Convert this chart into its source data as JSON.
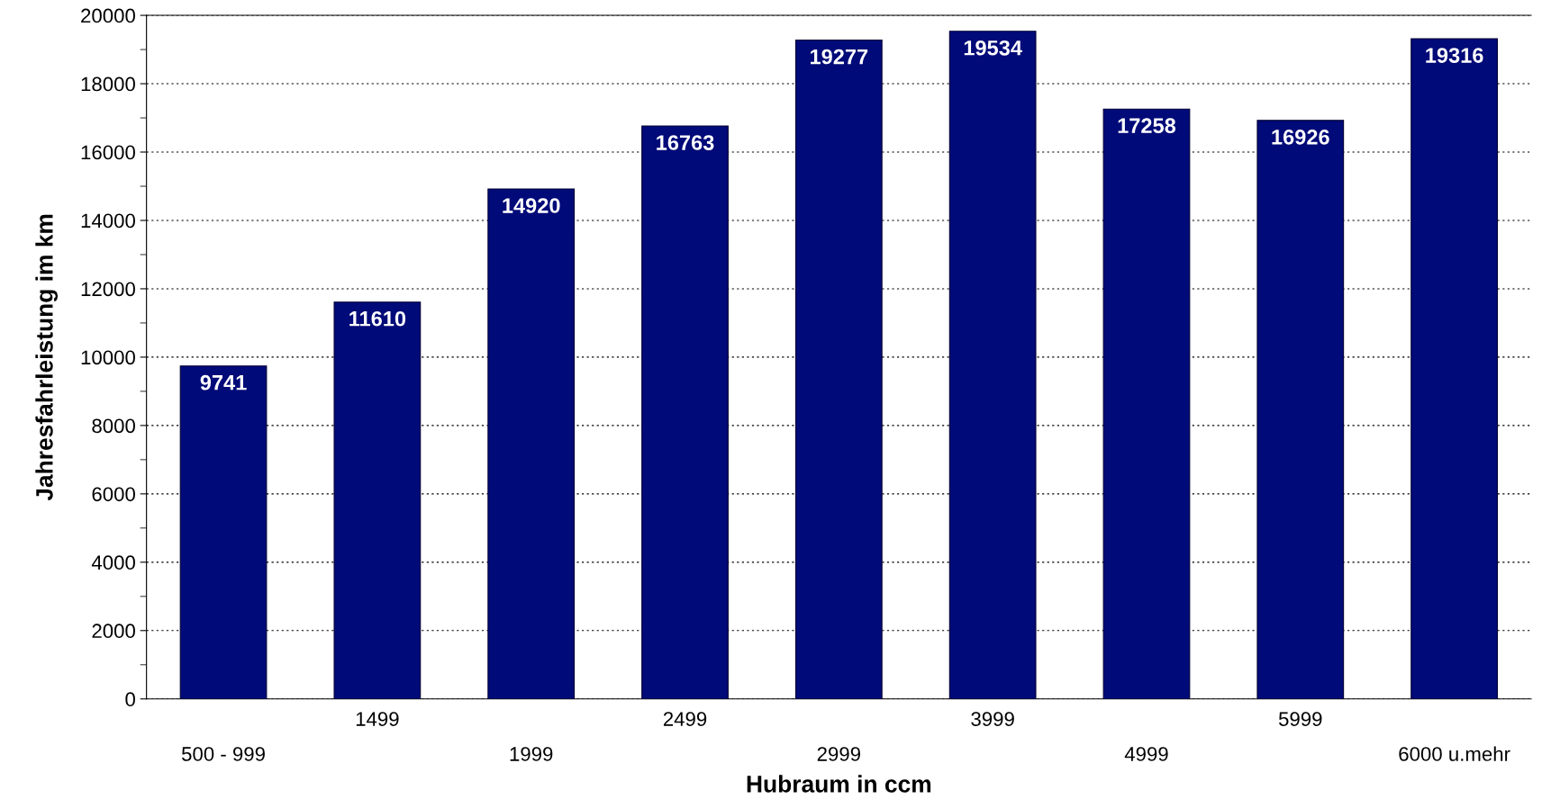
{
  "chart_data": {
    "type": "bar",
    "xlabel": "Hubraum in ccm",
    "ylabel": "Jahresfahrleistung im km",
    "categories": [
      "500 - 999",
      "1499",
      "1999",
      "2499",
      "2999",
      "3999",
      "4999",
      "5999",
      "6000 u.mehr"
    ],
    "values": [
      9741,
      11610,
      14920,
      16763,
      19277,
      19534,
      17258,
      16926,
      19316
    ],
    "color": "#000a78",
    "ylim": [
      0,
      20000
    ],
    "yticks": [
      0,
      2000,
      4000,
      6000,
      8000,
      10000,
      12000,
      14000,
      16000,
      18000,
      20000
    ],
    "grid": "y",
    "data_labels": true
  }
}
